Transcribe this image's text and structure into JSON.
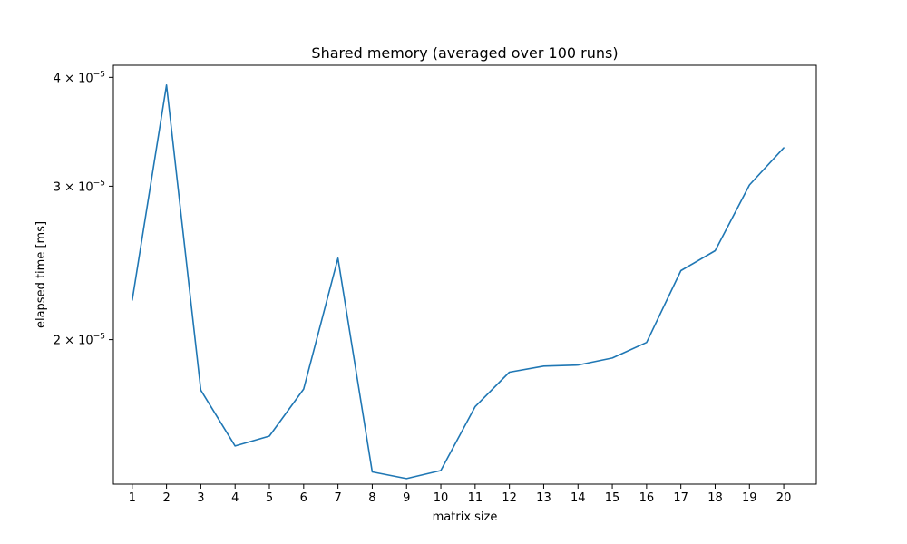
{
  "chart_data": {
    "type": "line",
    "title": "Shared memory (averaged over 100 runs)",
    "xlabel": "matrix size",
    "ylabel": "elapsed time [ms]",
    "yscale": "log",
    "grid": false,
    "legend": "none",
    "x": [
      1,
      2,
      3,
      4,
      5,
      6,
      7,
      8,
      9,
      10,
      11,
      12,
      13,
      14,
      15,
      16,
      17,
      18,
      19,
      20
    ],
    "xticks": [
      "1",
      "2",
      "3",
      "4",
      "5",
      "6",
      "7",
      "8",
      "9",
      "10",
      "11",
      "12",
      "13",
      "14",
      "15",
      "16",
      "17",
      "18",
      "19",
      "20"
    ],
    "yticks": [
      {
        "value": 2e-05,
        "mantissa": "2",
        "base": "10",
        "exponent": "−5"
      },
      {
        "value": 3e-05,
        "mantissa": "3",
        "base": "10",
        "exponent": "−5"
      },
      {
        "value": 4e-05,
        "mantissa": "4",
        "base": "10",
        "exponent": "−5"
      }
    ],
    "xlim": [
      0.45,
      20.95
    ],
    "ylim": [
      1.365e-05,
      4.13e-05
    ],
    "series": [
      {
        "color": "#1f77b4",
        "values": [
          2.22e-05,
          3.92e-05,
          1.75e-05,
          1.51e-05,
          1.55e-05,
          1.755e-05,
          2.48e-05,
          1.41e-05,
          1.385e-05,
          1.415e-05,
          1.675e-05,
          1.835e-05,
          1.865e-05,
          1.87e-05,
          1.905e-05,
          1.985e-05,
          2.4e-05,
          2.53e-05,
          3.01e-05,
          3.32e-05
        ]
      }
    ]
  }
}
